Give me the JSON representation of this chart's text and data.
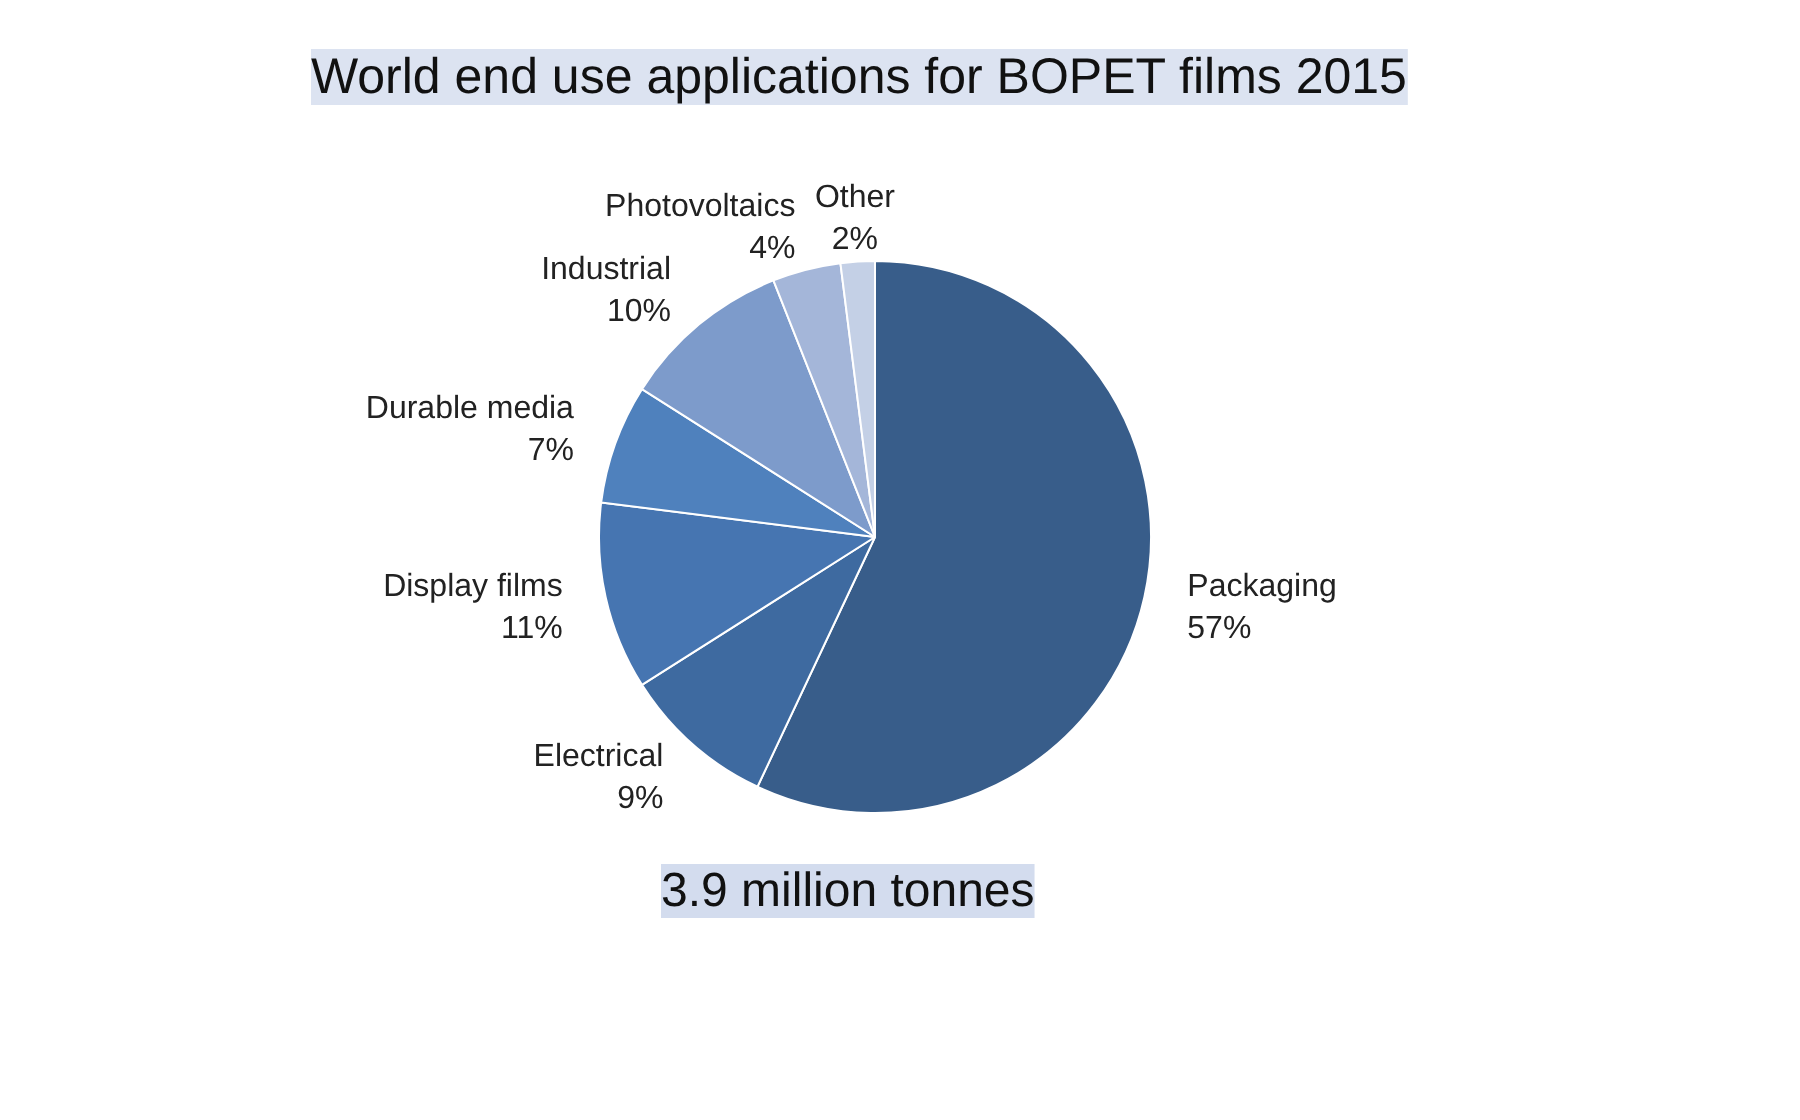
{
  "chart_data": {
    "type": "pie",
    "title": "World end use applications for BOPET films 2015",
    "categories": [
      "Packaging",
      "Electrical",
      "Display films",
      "Durable media",
      "Industrial",
      "Photovoltaics",
      "Other"
    ],
    "values": [
      57,
      9,
      11,
      7,
      10,
      4,
      2
    ],
    "value_labels": [
      "57%",
      "9%",
      "11%",
      "7%",
      "10%",
      "4%",
      "2%"
    ],
    "colors": [
      "#385d8a",
      "#3e6aa0",
      "#4675b1",
      "#4f81bd",
      "#7d9bcb",
      "#a4b6d9",
      "#c4d0e6"
    ],
    "annotations": [
      "3.9 million tonnes"
    ]
  }
}
